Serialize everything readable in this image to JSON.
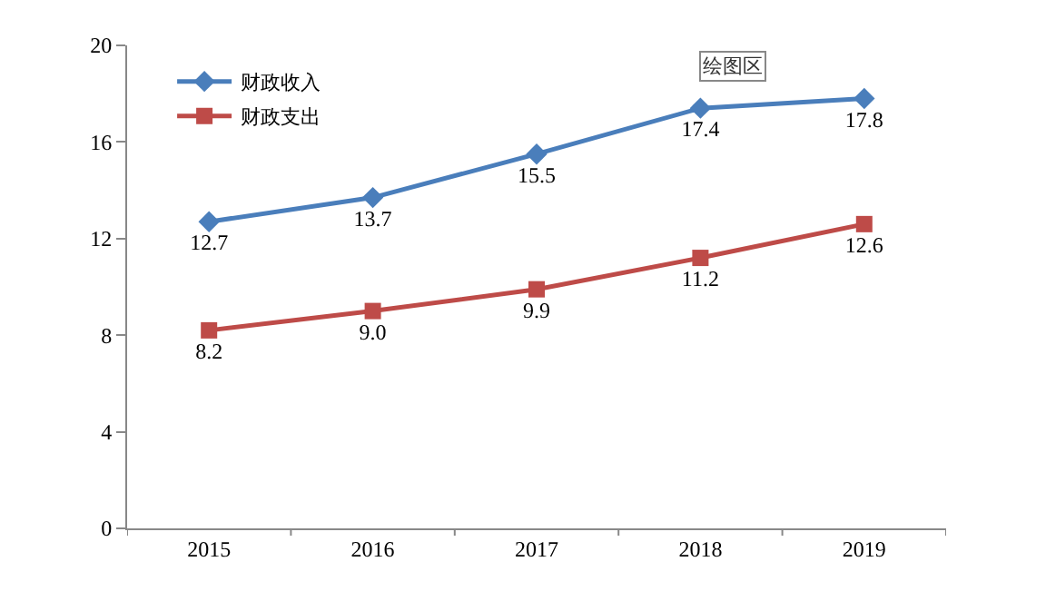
{
  "chart_data": {
    "type": "line",
    "categories": [
      "2015",
      "2016",
      "2017",
      "2018",
      "2019"
    ],
    "series": [
      {
        "name": "财政收入",
        "color": "#4a7ebb",
        "marker": "diamond",
        "values": [
          12.7,
          13.7,
          15.5,
          17.4,
          17.8
        ],
        "value_labels": [
          "12.7",
          "13.7",
          "15.5",
          "17.4",
          "17.8"
        ]
      },
      {
        "name": "财政支出",
        "color": "#be4b48",
        "marker": "square",
        "values": [
          8.2,
          9.0,
          9.9,
          11.2,
          12.6
        ],
        "value_labels": [
          "8.2",
          "9.0",
          "9.9",
          "11.2",
          "12.6"
        ]
      }
    ],
    "ylim": [
      0,
      20
    ],
    "yticks": [
      0,
      4,
      8,
      12,
      16,
      20
    ],
    "legend": "top left",
    "annotations": [
      "绘图区"
    ]
  }
}
